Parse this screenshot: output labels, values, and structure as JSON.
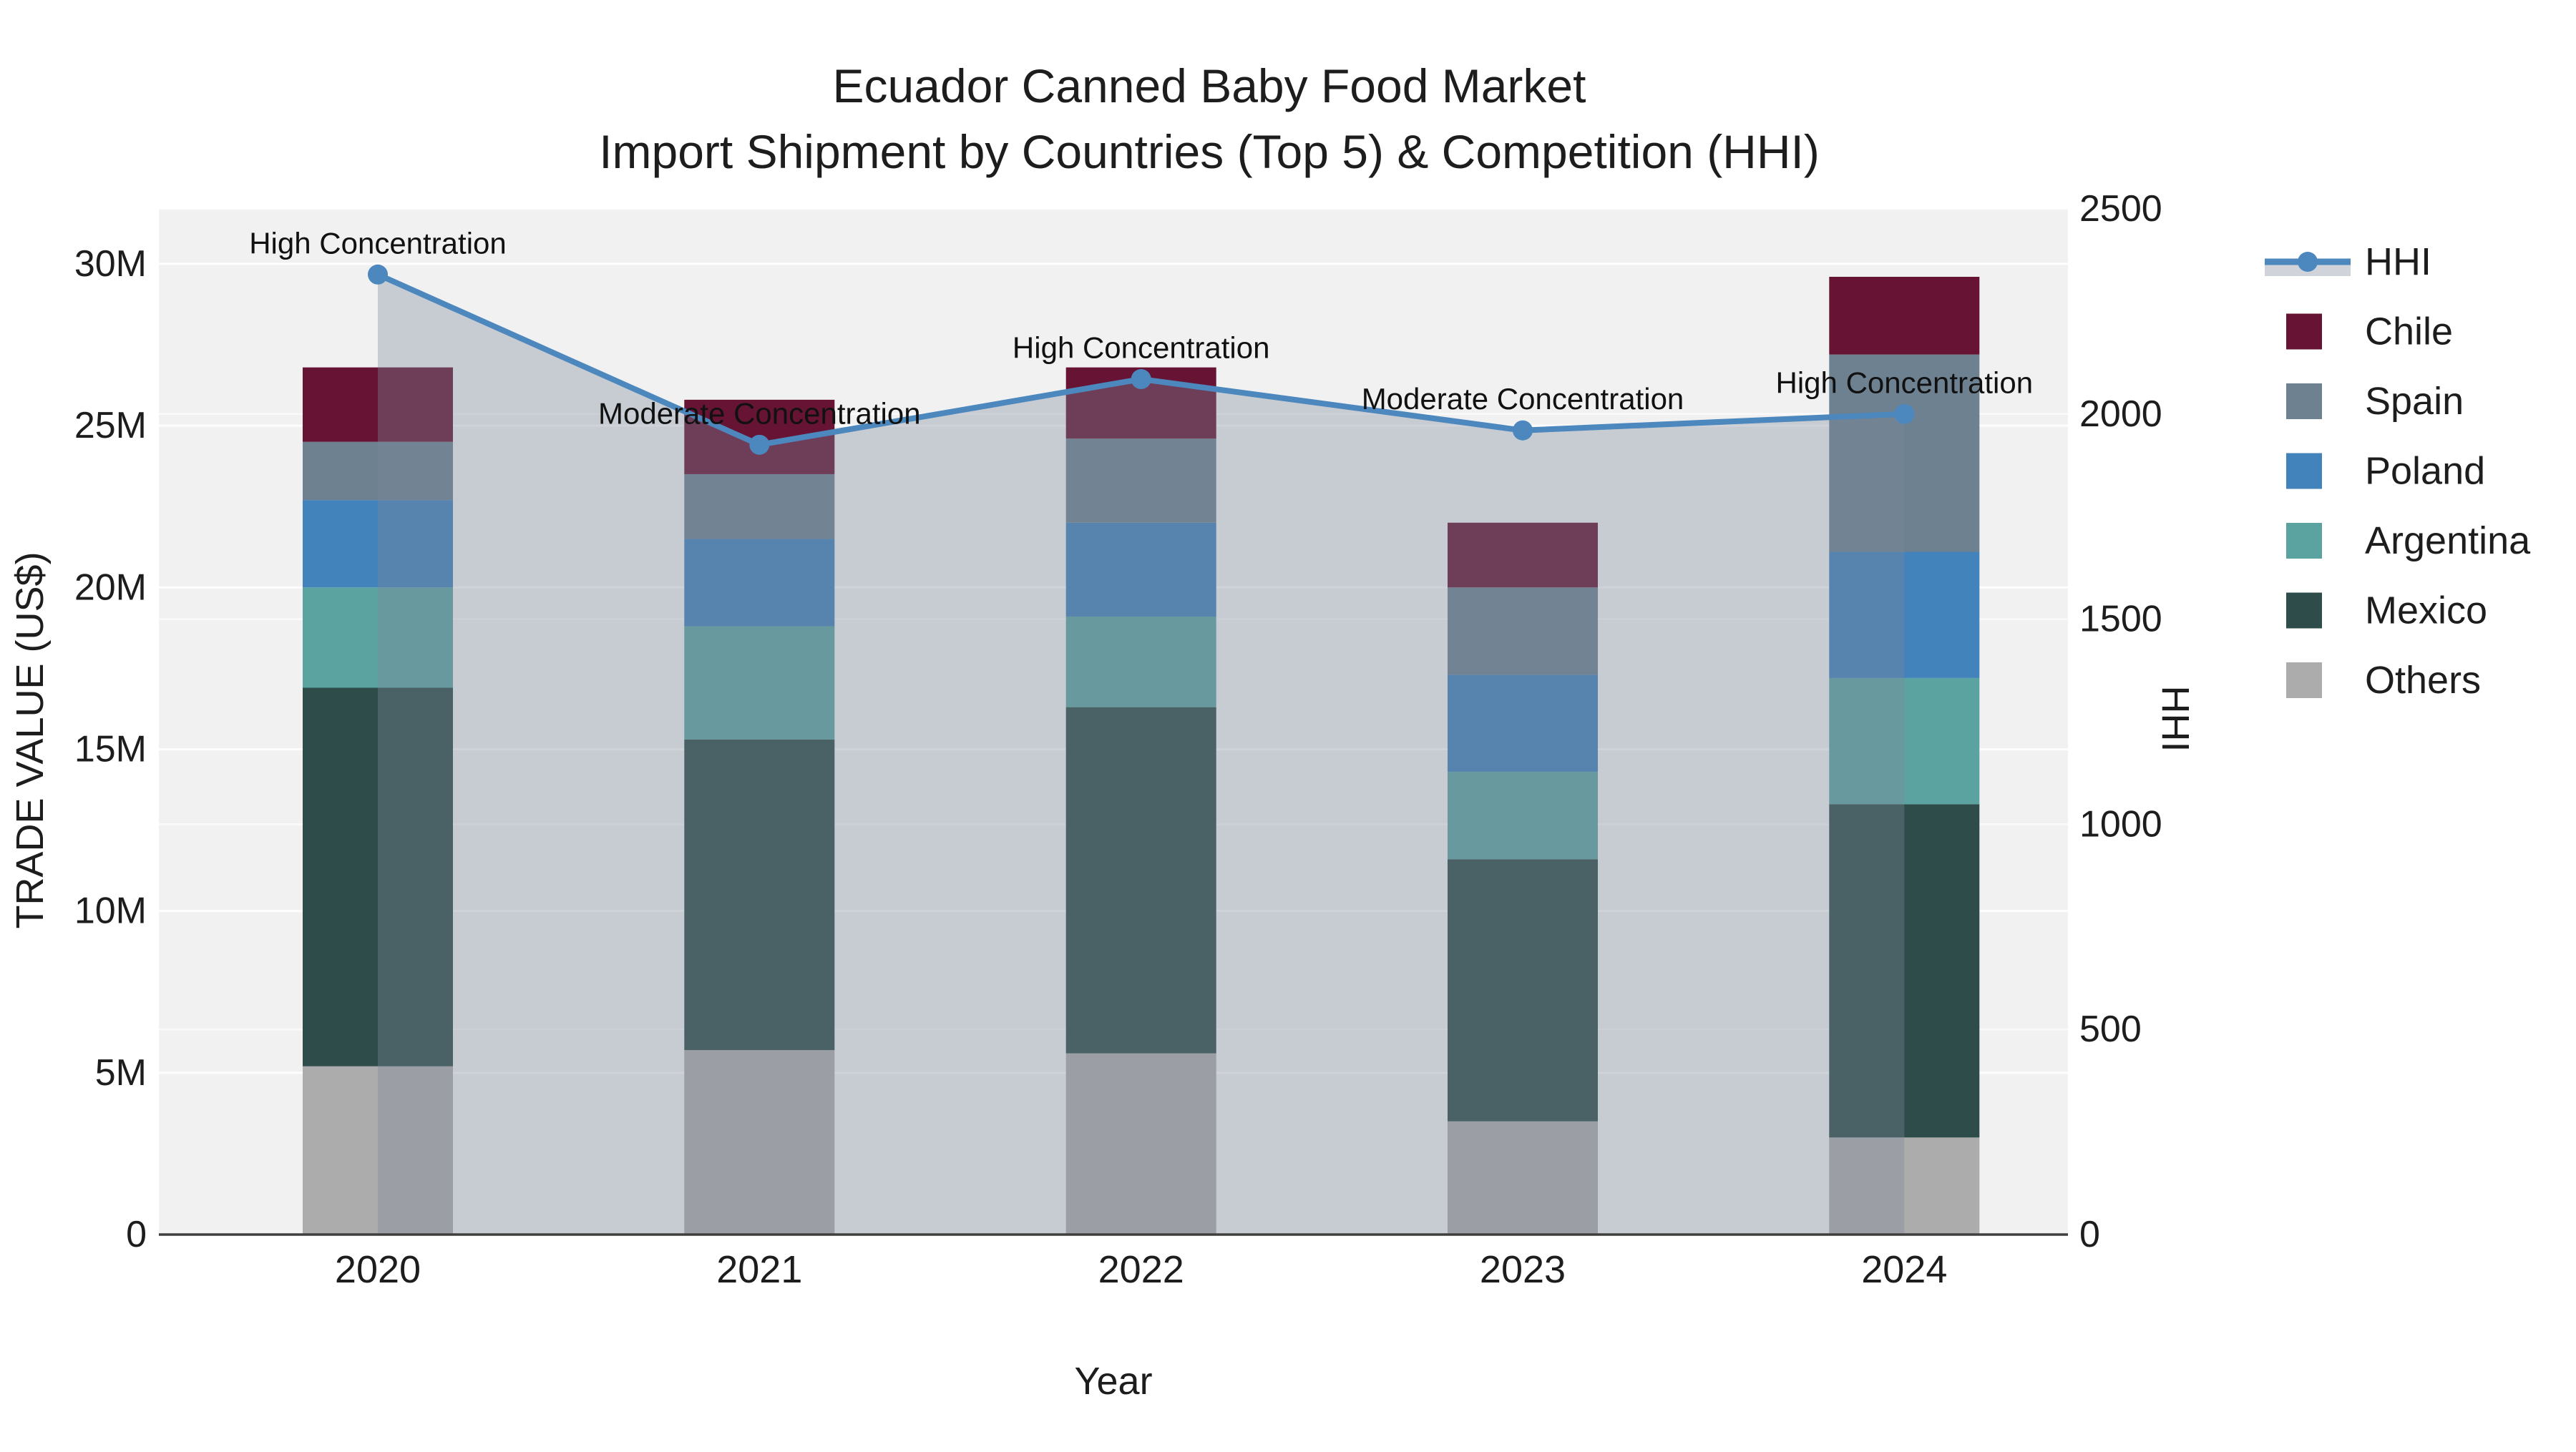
{
  "title": {
    "line1": "Ecuador Canned Baby Food Market",
    "line2": "Import Shipment by Countries (Top 5) & Competition (HHI)"
  },
  "axes": {
    "left": {
      "title": "TRADE VALUE (US$)",
      "max_m": 31.7,
      "ticks": [
        {
          "label": "0",
          "value": 0
        },
        {
          "label": "5M",
          "value": 5
        },
        {
          "label": "10M",
          "value": 10
        },
        {
          "label": "15M",
          "value": 15
        },
        {
          "label": "20M",
          "value": 20
        },
        {
          "label": "25M",
          "value": 25
        },
        {
          "label": "30M",
          "value": 30
        }
      ]
    },
    "right": {
      "title": "HHI",
      "max": 2500,
      "ticks": [
        {
          "label": "0",
          "value": 0
        },
        {
          "label": "500",
          "value": 500
        },
        {
          "label": "1000",
          "value": 1000
        },
        {
          "label": "1500",
          "value": 1500
        },
        {
          "label": "2000",
          "value": 2000
        },
        {
          "label": "2500",
          "value": 2500
        }
      ]
    },
    "x": {
      "title": "Year",
      "ticks": [
        "2020",
        "2021",
        "2022",
        "2023",
        "2024"
      ]
    }
  },
  "chart_data": {
    "type": "bar+line",
    "categories": [
      "2020",
      "2021",
      "2022",
      "2023",
      "2024"
    ],
    "bar_unit": "million US$",
    "series": [
      {
        "name": "Others",
        "color": "#acacac",
        "values": [
          5.2,
          5.7,
          5.6,
          3.5,
          3.0
        ]
      },
      {
        "name": "Mexico",
        "color": "#2e4d4a",
        "values": [
          11.7,
          9.6,
          10.7,
          8.1,
          10.3
        ]
      },
      {
        "name": "Argentina",
        "color": "#5ba3a1",
        "values": [
          3.1,
          3.5,
          2.8,
          2.7,
          3.9
        ]
      },
      {
        "name": "Poland",
        "color": "#4383bb",
        "values": [
          2.7,
          2.7,
          2.9,
          3.0,
          3.9
        ]
      },
      {
        "name": "Spain",
        "color": "#6d8191",
        "values": [
          1.8,
          2.0,
          2.6,
          2.7,
          6.1
        ]
      },
      {
        "name": "Chile",
        "color": "#671434",
        "values": [
          2.3,
          2.3,
          2.2,
          2.0,
          2.4
        ]
      }
    ],
    "totals_m": [
      26.8,
      25.8,
      26.8,
      22.0,
      29.6
    ],
    "line": {
      "name": "HHI",
      "color": "#4c87bd",
      "area_fill": "rgba(124,136,153,0.36)",
      "values": [
        2340,
        1925,
        2085,
        1960,
        2000
      ]
    },
    "annotations": [
      {
        "year": "2020",
        "text": "High Concentration"
      },
      {
        "year": "2021",
        "text": "Moderate Concentration"
      },
      {
        "year": "2022",
        "text": "High Concentration"
      },
      {
        "year": "2023",
        "text": "Moderate Concentration"
      },
      {
        "year": "2024",
        "text": "High Concentration"
      }
    ],
    "legend_position": "right",
    "grid": true,
    "plot_bg": "#f1f1f2"
  },
  "legend": {
    "items": [
      {
        "label": "HHI",
        "type": "line",
        "color": "#4c87bd"
      },
      {
        "label": "Chile",
        "type": "swatch",
        "color": "#671434"
      },
      {
        "label": "Spain",
        "type": "swatch",
        "color": "#6d8191"
      },
      {
        "label": "Poland",
        "type": "swatch",
        "color": "#4383bb"
      },
      {
        "label": "Argentina",
        "type": "swatch",
        "color": "#5ba3a1"
      },
      {
        "label": "Mexico",
        "type": "swatch",
        "color": "#2e4d4a"
      },
      {
        "label": "Others",
        "type": "swatch",
        "color": "#acacac"
      }
    ]
  }
}
